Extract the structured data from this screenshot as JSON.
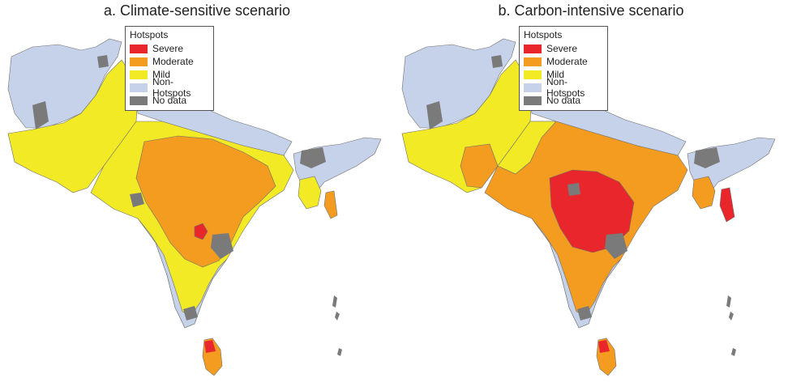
{
  "panels": [
    {
      "title": "a. Climate-sensitive scenario"
    },
    {
      "title": "b. Carbon-intensive scenario"
    }
  ],
  "legend": {
    "title": "Hotspots",
    "items": [
      {
        "label": "Severe",
        "color": "#e8262b"
      },
      {
        "label": "Moderate",
        "color": "#f39c1f"
      },
      {
        "label": "Mild",
        "color": "#f2ea25"
      },
      {
        "label": "Non-Hotspots",
        "color": "#c5d2ea"
      },
      {
        "label": "No data",
        "color": "#7a7a7a"
      }
    ]
  },
  "colors": {
    "boundary": "#6f6f6f",
    "severe": "#e8262b",
    "moderate": "#f39c1f",
    "mild": "#f2ea25",
    "non_hotspot": "#c5d2ea",
    "no_data": "#7a7a7a"
  }
}
